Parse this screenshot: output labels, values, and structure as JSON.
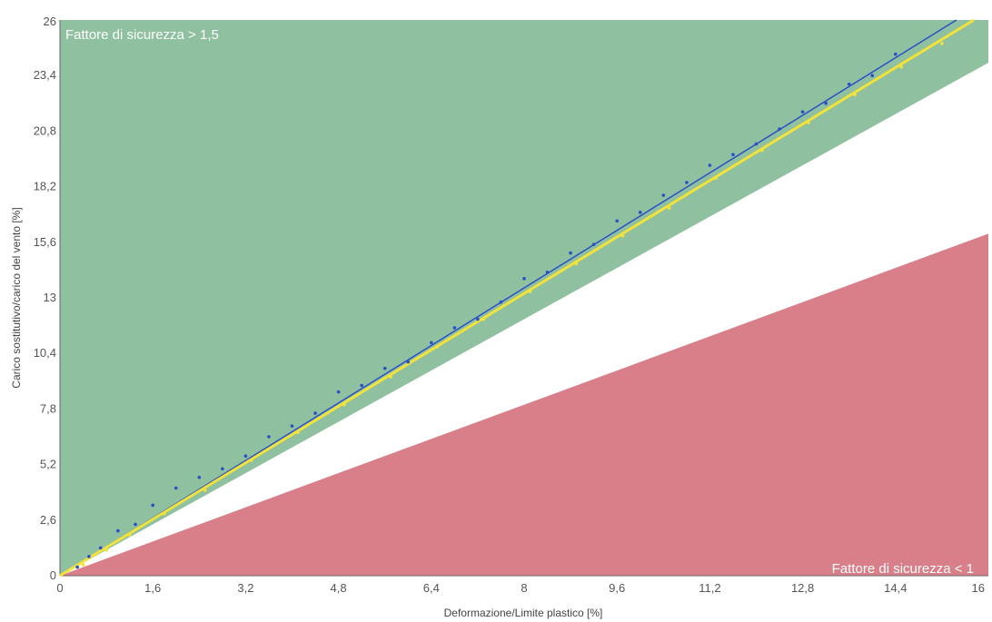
{
  "chart_data": {
    "type": "line",
    "xlabel": "Deformazione/Limite plastico [%]",
    "ylabel": "Carico sostitutivo/carico del vento [%]",
    "xlim": [
      0,
      16
    ],
    "ylim": [
      0,
      26
    ],
    "x_ticks": [
      "0",
      "1,6",
      "3,2",
      "4,8",
      "6,4",
      "8",
      "9,6",
      "11,2",
      "12,8",
      "14,4",
      "16"
    ],
    "y_ticks": [
      "0",
      "2,6",
      "5,2",
      "7,8",
      "10,4",
      "13",
      "15,6",
      "18,2",
      "20,8",
      "23,4",
      "26"
    ],
    "zones": [
      {
        "label": "Fattore di sicurezza > 1,5",
        "color": "#8fc1a0",
        "upper_y": 26,
        "lower_boundary_y_at_x16": 24
      },
      {
        "label": "Fattore di sicurezza < 1",
        "color": "#d97f89",
        "upper_boundary_y_at_x16": 16,
        "lower_y": 0
      }
    ],
    "series": [
      {
        "color": "#2b4fc7",
        "x": [
          0,
          15.45
        ],
        "y": [
          0,
          26
        ]
      },
      {
        "color": "#f2e23a",
        "x": [
          0,
          15.75
        ],
        "y": [
          0,
          26
        ]
      }
    ],
    "scatter_blue": {
      "x": [
        0.3,
        0.5,
        0.7,
        1.0,
        1.3,
        1.6,
        2.0,
        2.4,
        2.8,
        3.2,
        3.6,
        4.0,
        4.4,
        4.8,
        5.2,
        5.6,
        6.0,
        6.4,
        6.8,
        7.2,
        7.6,
        8.0,
        8.4,
        8.8,
        9.2,
        9.6,
        10.0,
        10.4,
        10.8,
        11.2,
        11.6,
        12.0,
        12.4,
        12.8,
        13.2,
        13.6,
        14.0,
        14.4
      ],
      "y": [
        0.4,
        0.9,
        1.3,
        2.1,
        2.4,
        3.3,
        4.1,
        4.6,
        5.0,
        5.6,
        6.5,
        7.0,
        7.6,
        8.6,
        8.9,
        9.7,
        10.0,
        10.9,
        11.6,
        12.0,
        12.8,
        13.9,
        14.2,
        15.1,
        15.5,
        16.6,
        17.0,
        17.8,
        18.4,
        19.2,
        19.7,
        20.2,
        20.9,
        21.7,
        22.1,
        23.0,
        23.4,
        24.4
      ]
    },
    "scatter_yellow": {
      "x": [
        0.4,
        0.8,
        1.2,
        1.8,
        2.5,
        3.3,
        4.1,
        4.9,
        5.7,
        6.5,
        7.3,
        8.1,
        8.9,
        9.7,
        10.5,
        11.3,
        12.1,
        12.9,
        13.7,
        14.5,
        15.2
      ],
      "y": [
        0.5,
        1.2,
        1.9,
        2.9,
        4.0,
        5.4,
        6.7,
        8.0,
        9.3,
        10.7,
        12.0,
        13.3,
        14.6,
        15.9,
        17.2,
        18.6,
        19.9,
        21.2,
        22.5,
        23.8,
        24.9
      ]
    }
  }
}
